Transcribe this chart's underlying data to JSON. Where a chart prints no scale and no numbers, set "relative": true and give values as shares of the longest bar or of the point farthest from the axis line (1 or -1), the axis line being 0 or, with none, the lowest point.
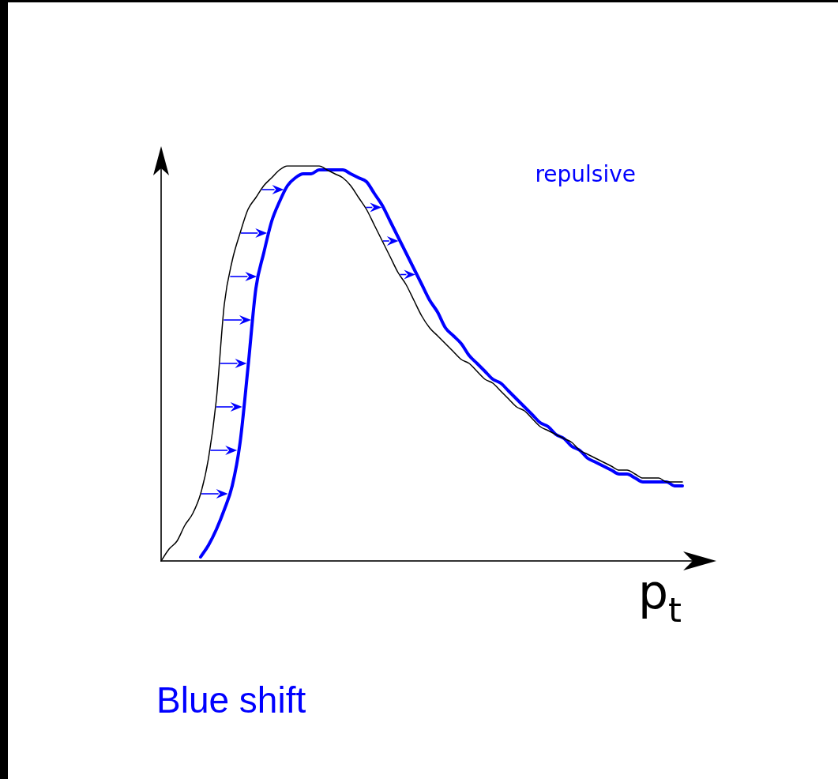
{
  "chart_data": {
    "type": "line",
    "relative": true,
    "xlabel": "p$_{t}$",
    "annotations": [
      "Blue shift"
    ],
    "categories": [
      null,
      null,
      null,
      null,
      null,
      null,
      null,
      null,
      null,
      null,
      null,
      null,
      null,
      null,
      null,
      null,
      null,
      null,
      null,
      null,
      null,
      null,
      null,
      null,
      null,
      null,
      null,
      null,
      null,
      null,
      null,
      null,
      null,
      null,
      null,
      null,
      null,
      null,
      null,
      null,
      null,
      null,
      null,
      null,
      null,
      null,
      null,
      null,
      null,
      null,
      null,
      null,
      null,
      null,
      null,
      null,
      null,
      null,
      null,
      null,
      null,
      null,
      null,
      null,
      null,
      null,
      null,
      null,
      null
    ],
    "series": [
      {
        "color": "#000000",
        "values": [
          0,
          0.03,
          0.05,
          0.09,
          0.12,
          0.17,
          0.26,
          0.41,
          0.65,
          0.76,
          0.83,
          0.89,
          0.92,
          0.95,
          0.97,
          0.99,
          1,
          1,
          1,
          1,
          1,
          0.99,
          0.98,
          0.97,
          0.95,
          0.92,
          0.89,
          0.85,
          0.81,
          0.77,
          0.73,
          0.7,
          0.66,
          0.62,
          0.59,
          0.57,
          0.55,
          0.53,
          0.51,
          0.5,
          0.48,
          0.46,
          0.45,
          0.43,
          0.41,
          0.39,
          0.38,
          0.36,
          0.34,
          0.33,
          0.32,
          0.31,
          0.3,
          0.28,
          0.27,
          0.26,
          0.25,
          0.24,
          0.23,
          0.23,
          0.22,
          0.21,
          0.21,
          0.21,
          0.2,
          0.2,
          0.2,
          null,
          null
        ]
      },
      {
        "name": "repulsive",
        "color": "#0000ff",
        "values": [
          null,
          null,
          null,
          null,
          null,
          0.01,
          0.04,
          0.08,
          0.13,
          0.19,
          0.3,
          0.49,
          0.69,
          0.78,
          0.86,
          0.91,
          0.95,
          0.97,
          0.98,
          0.98,
          0.99,
          0.99,
          0.99,
          0.99,
          0.98,
          0.97,
          0.96,
          0.93,
          0.9,
          0.86,
          0.82,
          0.78,
          0.74,
          0.7,
          0.66,
          0.63,
          0.59,
          0.57,
          0.55,
          0.52,
          0.5,
          0.48,
          0.46,
          0.45,
          0.43,
          0.41,
          0.39,
          0.37,
          0.35,
          0.34,
          0.32,
          0.31,
          0.29,
          0.28,
          0.26,
          0.25,
          0.24,
          0.23,
          0.22,
          0.22,
          0.21,
          0.2,
          0.2,
          0.2,
          0.2,
          0.19,
          0.19,
          null,
          null
        ]
      }
    ]
  }
}
